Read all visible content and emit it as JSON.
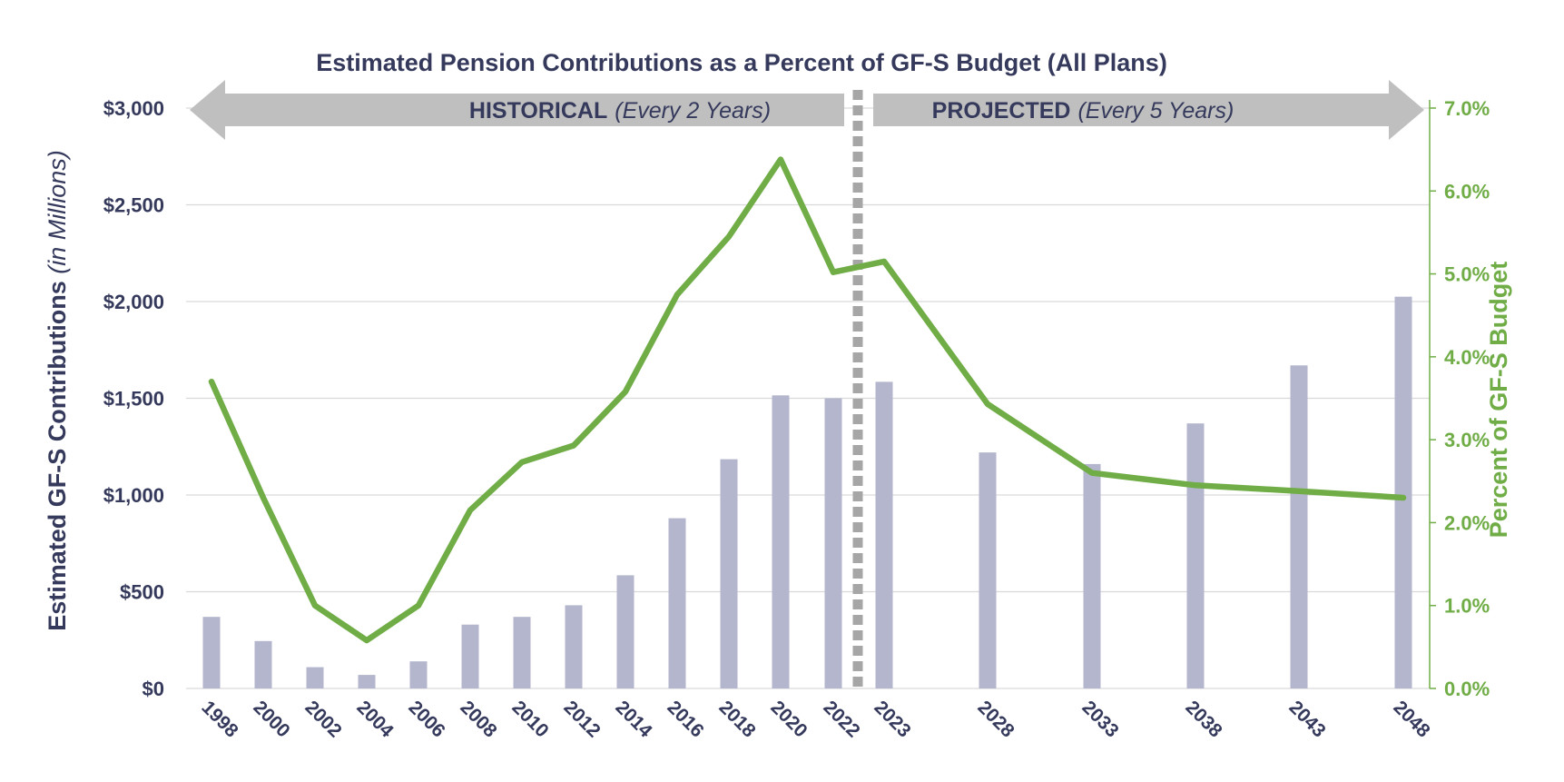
{
  "chart_data": {
    "type": "bar",
    "title": "Estimated Pension Contributions as a Percent of GF-S Budget (All Plans)",
    "ylabel": "Estimated GF-S Contributions",
    "ylabel_em": "(in Millions)",
    "y2label": "Percent of GF-S Budget",
    "categories": [
      "1998",
      "2000",
      "2002",
      "2004",
      "2006",
      "2008",
      "2010",
      "2012",
      "2014",
      "2016",
      "2018",
      "2020",
      "2022",
      "2023",
      "2028",
      "2033",
      "2038",
      "2043",
      "2048"
    ],
    "series": [
      {
        "type": "bar",
        "axis": "left",
        "values": [
          370,
          245,
          110,
          70,
          140,
          330,
          370,
          430,
          585,
          880,
          1185,
          1515,
          1500,
          1585,
          1220,
          1160,
          1370,
          1670,
          2025
        ]
      },
      {
        "type": "line",
        "axis": "right",
        "values": [
          3.7,
          2.3,
          1.0,
          0.58,
          1.0,
          2.15,
          2.73,
          2.93,
          3.58,
          4.75,
          5.45,
          6.38,
          5.02,
          5.15,
          3.43,
          2.6,
          2.45,
          2.38,
          2.3
        ]
      }
    ],
    "ylim": [
      0,
      3000
    ],
    "y2lim": [
      0,
      7
    ],
    "y_ticks": [
      "$0",
      "$500",
      "$1,000",
      "$1,500",
      "$2,000",
      "$2,500",
      "$3,000"
    ],
    "y2_ticks": [
      "0.0%",
      "1.0%",
      "2.0%",
      "3.0%",
      "4.0%",
      "5.0%",
      "6.0%",
      "7.0%"
    ],
    "grid": "horizontal",
    "periods": [
      {
        "label": "HISTORICAL",
        "note": "(Every 2 Years)"
      },
      {
        "label": "PROJECTED",
        "note": "(Every 5 Years)"
      }
    ],
    "colors": {
      "bar": "#b3b6cc",
      "line": "#70ad47",
      "arrow": "#bfbfbf",
      "divider": "#a6a6a6",
      "text": "#353a5c",
      "grid": "#d9d9d9"
    }
  }
}
